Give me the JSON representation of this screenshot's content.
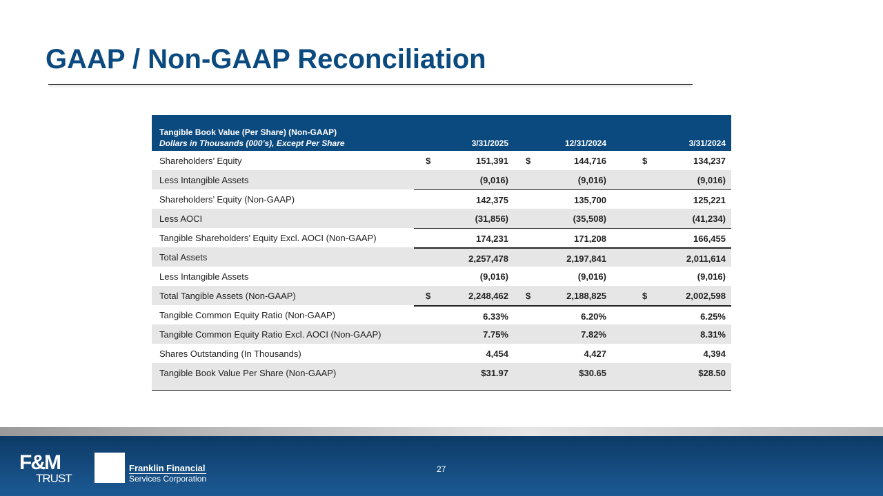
{
  "header": {
    "title": "GAAP / Non-GAAP Reconciliation"
  },
  "table": {
    "heading": "Tangible Book Value (Per Share) (Non-GAAP)",
    "subheading": "Dollars in Thousands (000’s), Except Per Share",
    "columns": [
      "3/31/2025",
      "12/31/2024",
      "3/31/2024"
    ],
    "rows": [
      {
        "label": "Shareholders’ Equity",
        "currency": "$",
        "values": [
          "151,391",
          "144,716",
          "134,237"
        ]
      },
      {
        "label": "Less Intangible Assets",
        "values": [
          "(9,016)",
          "(9,016)",
          "(9,016)"
        ]
      },
      {
        "label": "Shareholders’ Equity (Non-GAAP)",
        "values": [
          "142,375",
          "135,700",
          "125,221"
        ]
      },
      {
        "label": "Less AOCI",
        "values": [
          "(31,856)",
          "(35,508)",
          "(41,234)"
        ]
      },
      {
        "label": "Tangible Shareholders’ Equity Excl. AOCI (Non-GAAP)",
        "values": [
          "174,231",
          "171,208",
          "166,455"
        ]
      },
      {
        "label": "Total Assets",
        "values": [
          "2,257,478",
          "2,197,841",
          "2,011,614"
        ]
      },
      {
        "label": "Less Intangible Assets",
        "values": [
          "(9,016)",
          "(9,016)",
          "(9,016)"
        ]
      },
      {
        "label": "Total Tangible Assets (Non-GAAP)",
        "currency": "$",
        "values": [
          "2,248,462",
          "2,188,825",
          "2,002,598"
        ]
      },
      {
        "label": "Tangible Common Equity Ratio (Non-GAAP)",
        "values": [
          "6.33%",
          "6.20%",
          "6.25%"
        ]
      },
      {
        "label": "Tangible Common Equity Ratio Excl. AOCI (Non-GAAP)",
        "values": [
          "7.75%",
          "7.82%",
          "8.31%"
        ]
      },
      {
        "label": "Shares Outstanding (In Thousands)",
        "values": [
          "4,454",
          "4,427",
          "4,394"
        ]
      },
      {
        "label": "Tangible Book Value Per Share (Non-GAAP)",
        "values": [
          "$31.97",
          "$30.65",
          "$28.50"
        ]
      }
    ]
  },
  "footer": {
    "logo1_top": "F&M",
    "logo1_bottom": "TRUST",
    "logo2_line1": "Franklin Financial",
    "logo2_line2": "Services Corporation",
    "page": "27"
  }
}
